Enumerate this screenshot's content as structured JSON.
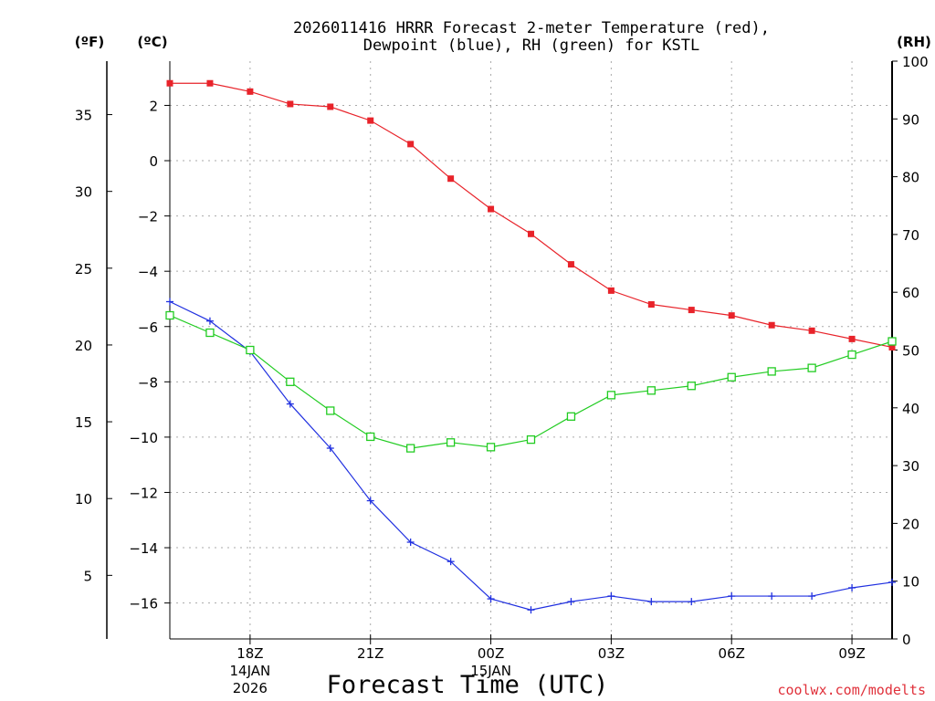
{
  "chart_data": {
    "type": "line",
    "title_line1": "2026011416 HRRR Forecast 2-meter Temperature (red),",
    "title_line2": "Dewpoint (blue), RH (green) for KSTL",
    "unit_f": "(ºF)",
    "unit_c": "(ºC)",
    "unit_rh": "(RH)",
    "xlabel": "Forecast Time (UTC)",
    "credit": "coolwx.com/modelts",
    "x_hours": [
      16,
      17,
      18,
      19,
      20,
      21,
      22,
      23,
      24,
      25,
      26,
      27,
      28,
      29,
      30,
      31,
      32,
      33,
      34
    ],
    "x_range": [
      16,
      34
    ],
    "x_ticks": [
      {
        "hour": 18,
        "label": "18Z",
        "sub1": "14JAN",
        "sub2": "2026"
      },
      {
        "hour": 21,
        "label": "21Z",
        "sub1": "",
        "sub2": ""
      },
      {
        "hour": 24,
        "label": "00Z",
        "sub1": "15JAN",
        "sub2": ""
      },
      {
        "hour": 27,
        "label": "03Z",
        "sub1": "",
        "sub2": ""
      },
      {
        "hour": 30,
        "label": "06Z",
        "sub1": "",
        "sub2": ""
      },
      {
        "hour": 33,
        "label": "09Z",
        "sub1": "",
        "sub2": ""
      }
    ],
    "c_range": [
      -17.3,
      3.6
    ],
    "c_ticks": [
      2,
      0,
      -2,
      -4,
      -6,
      -8,
      -10,
      -12,
      -14,
      -16
    ],
    "c_tick_labels": [
      "2",
      "0",
      "−2",
      "−4",
      "−6",
      "−8",
      "−10",
      "−12",
      "−14",
      "−16"
    ],
    "f_ticks": [
      35,
      30,
      25,
      20,
      15,
      10,
      5
    ],
    "rh_range": [
      0,
      100
    ],
    "rh_ticks": [
      100,
      90,
      80,
      70,
      60,
      50,
      40,
      30,
      20,
      10,
      0
    ],
    "series": [
      {
        "name": "Temperature",
        "unit": "C",
        "color": "#e8232a",
        "marker": "filled-square",
        "values": [
          2.8,
          2.8,
          2.5,
          2.05,
          1.95,
          1.45,
          0.6,
          -0.65,
          -1.75,
          -2.65,
          -3.75,
          -4.7,
          -5.2,
          -5.4,
          -5.6,
          -5.95,
          -6.15,
          -6.45,
          -6.75
        ]
      },
      {
        "name": "Dewpoint",
        "unit": "C",
        "color": "#2030e0",
        "marker": "plus",
        "values": [
          -5.1,
          -5.8,
          -6.9,
          -8.8,
          -10.4,
          -12.3,
          -13.8,
          -14.5,
          -15.85,
          -16.25,
          -15.95,
          -15.75,
          -15.95,
          -15.95,
          -15.75,
          -15.75,
          -15.75,
          -15.45,
          -15.25
        ]
      },
      {
        "name": "RH",
        "unit": "%",
        "color": "#22cc22",
        "marker": "open-square",
        "values": [
          56,
          53,
          50,
          44.5,
          39.5,
          35,
          33,
          34,
          33.2,
          34.5,
          38.5,
          42.2,
          43,
          43.8,
          45.3,
          46.3,
          46.9,
          49.2,
          51.5
        ]
      }
    ]
  }
}
